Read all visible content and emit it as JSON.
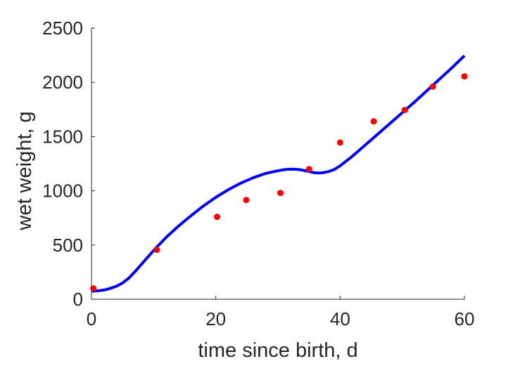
{
  "chart_data": {
    "type": "scatter",
    "xlabel": "time since birth, d",
    "ylabel": "wet weight, g",
    "xlim": [
      0,
      60
    ],
    "ylim": [
      0,
      2500
    ],
    "xticks": [
      "0",
      "20",
      "40",
      "60"
    ],
    "yticks": [
      "0",
      "500",
      "1000",
      "1500",
      "2000",
      "2500"
    ],
    "grid": false,
    "series": [
      {
        "kind": "points",
        "color": "#ff0000",
        "x": [
          0.3,
          10.5,
          20.2,
          24.9,
          30.4,
          35.0,
          40.0,
          45.4,
          50.4,
          54.9,
          60.0
        ],
        "y": [
          100,
          455,
          760,
          915,
          980,
          1200,
          1445,
          1640,
          1745,
          1960,
          2055
        ]
      },
      {
        "kind": "line",
        "color": "#0000ff",
        "x": [
          0,
          1,
          2,
          3,
          4,
          5,
          6,
          7,
          8,
          9,
          10,
          12,
          14,
          16,
          18,
          20,
          22,
          24,
          26,
          28,
          30,
          31,
          32,
          33,
          34,
          35,
          36,
          37,
          38,
          39,
          40,
          42,
          44,
          46,
          48,
          50,
          52,
          54,
          56,
          58,
          60
        ],
        "y": [
          75,
          78,
          85,
          100,
          120,
          150,
          195,
          255,
          320,
          385,
          450,
          570,
          675,
          770,
          860,
          940,
          1010,
          1070,
          1120,
          1160,
          1185,
          1195,
          1200,
          1198,
          1190,
          1178,
          1165,
          1165,
          1175,
          1195,
          1230,
          1320,
          1420,
          1520,
          1620,
          1720,
          1820,
          1925,
          2030,
          2135,
          2245
        ]
      }
    ]
  }
}
